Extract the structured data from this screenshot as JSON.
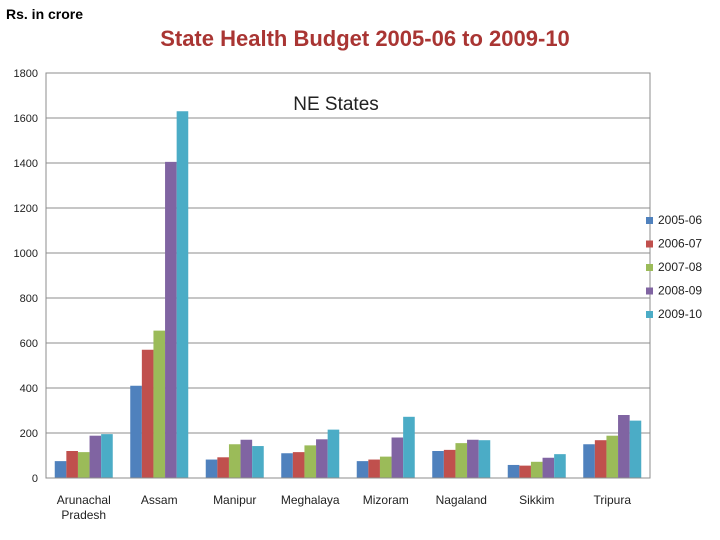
{
  "unit_label": "Rs. in crore",
  "chart_data": {
    "type": "bar",
    "title": "State Health Budget 2005-06 to 2009-10",
    "subtitle": "NE States",
    "ylabel": "Rs. in crore",
    "xlabel": "",
    "ylim": [
      0,
      1800
    ],
    "yticks": [
      0,
      200,
      400,
      600,
      800,
      1000,
      1200,
      1400,
      1600,
      1800
    ],
    "grid": true,
    "legend_position": "right",
    "categories": [
      "Arunachal\nPradesh",
      "Assam",
      "Manipur",
      "Meghalaya",
      "Mizoram",
      "Nagaland",
      "Sikkim",
      "Tripura"
    ],
    "series": [
      {
        "name": "2005-06",
        "color": "#4f81bd",
        "values": [
          75,
          410,
          82,
          110,
          75,
          120,
          58,
          150
        ]
      },
      {
        "name": "2006-07",
        "color": "#c0504d",
        "values": [
          120,
          570,
          92,
          115,
          82,
          125,
          55,
          168
        ]
      },
      {
        "name": "2007-08",
        "color": "#9bbb59",
        "values": [
          115,
          655,
          150,
          145,
          95,
          155,
          72,
          188
        ]
      },
      {
        "name": "2008-09",
        "color": "#8064a2",
        "values": [
          188,
          1405,
          170,
          172,
          180,
          170,
          90,
          280
        ]
      },
      {
        "name": "2009-10",
        "color": "#4bacc6",
        "values": [
          195,
          1630,
          142,
          215,
          272,
          168,
          106,
          255
        ]
      }
    ]
  }
}
